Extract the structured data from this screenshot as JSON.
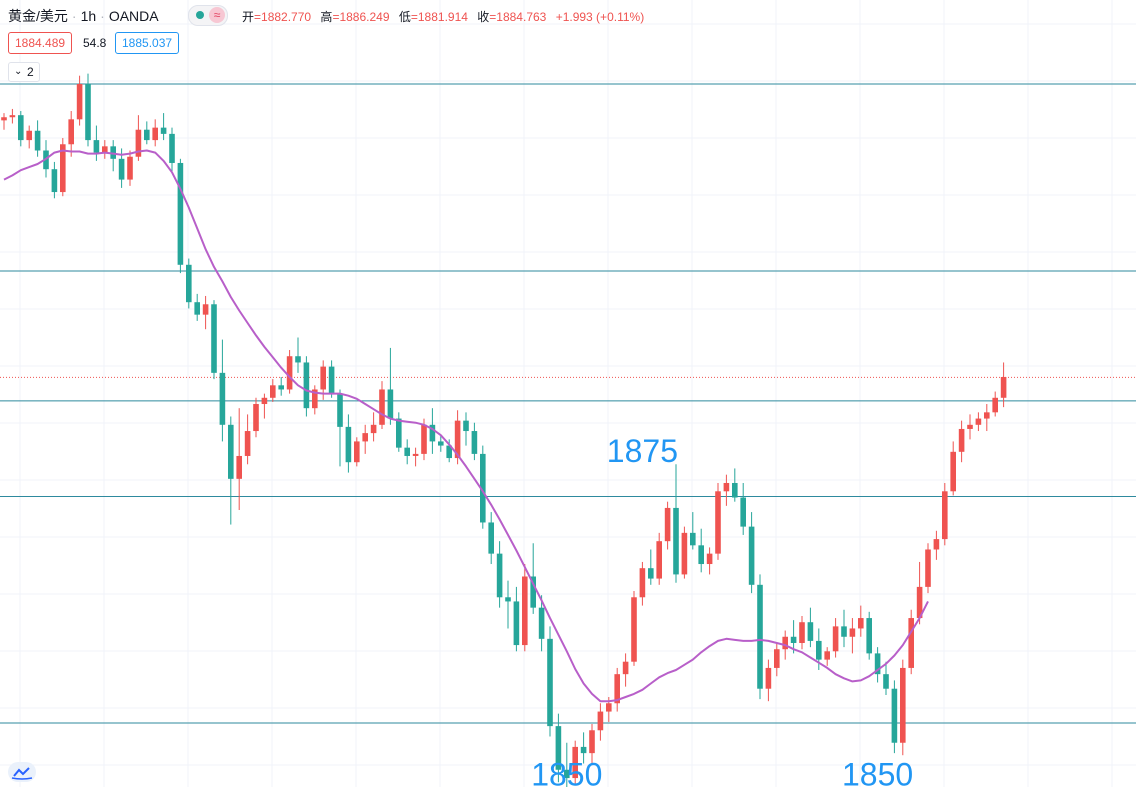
{
  "header": {
    "symbol": "黄金/美元",
    "timeframe": "1h",
    "broker": "OANDA",
    "open_label": "开",
    "open": "=1882.770",
    "high_label": "高",
    "high": "=1886.249",
    "low_label": "低",
    "low": "=1881.914",
    "close_label": "收",
    "close": "=1884.763",
    "change": "+1.993 (+0.11%)"
  },
  "quote": {
    "bid": "1884.489",
    "spread": "54.8",
    "ask": "1885.037"
  },
  "indicators_toggle": {
    "count": "2"
  },
  "colors": {
    "up": "#ef5350",
    "down": "#26a69a",
    "ma": "#b85fc9",
    "hline": "#2e8a9e",
    "annotation": "#2196f3"
  },
  "chart_data": {
    "type": "candlestick",
    "symbol": "XAU/USD",
    "interval": "1h",
    "current_price": 1884.763,
    "ylim": [
      1847.0,
      1920.0
    ],
    "horizontal_levels": [
      1913,
      1895,
      1882.5,
      1873.3,
      1851.5
    ],
    "annotations": [
      {
        "text": "1875",
        "index": 76
      },
      {
        "text": "1850",
        "index": 67
      },
      {
        "text": "1850",
        "index": 104
      }
    ],
    "candles": [
      [
        1909.5,
        1910.2,
        1908.6,
        1909.8
      ],
      [
        1909.8,
        1910.6,
        1909.2,
        1910.0
      ],
      [
        1910.0,
        1910.4,
        1907.0,
        1907.6
      ],
      [
        1907.6,
        1909.0,
        1906.8,
        1908.5
      ],
      [
        1908.5,
        1909.5,
        1906.0,
        1906.6
      ],
      [
        1906.6,
        1907.6,
        1904.0,
        1904.8
      ],
      [
        1904.8,
        1905.5,
        1902.0,
        1902.6
      ],
      [
        1902.6,
        1907.8,
        1902.2,
        1907.2
      ],
      [
        1907.2,
        1910.4,
        1906.0,
        1909.6
      ],
      [
        1909.6,
        1913.8,
        1909.0,
        1913.0
      ],
      [
        1913.0,
        1914.0,
        1907.0,
        1907.6
      ],
      [
        1907.6,
        1909.0,
        1905.6,
        1906.4
      ],
      [
        1906.4,
        1907.6,
        1905.8,
        1907.0
      ],
      [
        1907.0,
        1907.6,
        1904.6,
        1905.8
      ],
      [
        1905.8,
        1906.8,
        1903.0,
        1903.8
      ],
      [
        1903.8,
        1906.6,
        1903.2,
        1906.0
      ],
      [
        1906.0,
        1910.0,
        1905.6,
        1908.6
      ],
      [
        1908.6,
        1909.4,
        1907.2,
        1907.6
      ],
      [
        1907.6,
        1909.6,
        1907.0,
        1908.8
      ],
      [
        1908.8,
        1910.2,
        1907.6,
        1908.2
      ],
      [
        1908.2,
        1908.8,
        1904.6,
        1905.4
      ],
      [
        1905.4,
        1905.8,
        1894.8,
        1895.6
      ],
      [
        1895.6,
        1896.2,
        1891.4,
        1892.0
      ],
      [
        1892.0,
        1892.8,
        1890.2,
        1890.8
      ],
      [
        1890.8,
        1892.6,
        1889.4,
        1891.8
      ],
      [
        1891.8,
        1892.2,
        1884.6,
        1885.2
      ],
      [
        1885.2,
        1888.4,
        1878.6,
        1880.2
      ],
      [
        1880.2,
        1881.0,
        1870.6,
        1875.0
      ],
      [
        1875.0,
        1881.8,
        1872.0,
        1877.2
      ],
      [
        1877.2,
        1881.2,
        1876.4,
        1879.6
      ],
      [
        1879.6,
        1882.8,
        1879.0,
        1882.2
      ],
      [
        1882.2,
        1883.2,
        1880.8,
        1882.8
      ],
      [
        1882.8,
        1884.6,
        1882.4,
        1884.0
      ],
      [
        1884.0,
        1884.8,
        1883.0,
        1883.6
      ],
      [
        1883.6,
        1887.4,
        1883.2,
        1886.8
      ],
      [
        1886.8,
        1888.6,
        1885.2,
        1886.2
      ],
      [
        1886.2,
        1886.8,
        1881.0,
        1881.8
      ],
      [
        1881.8,
        1884.0,
        1881.2,
        1883.6
      ],
      [
        1883.6,
        1886.4,
        1882.6,
        1885.8
      ],
      [
        1885.8,
        1886.4,
        1882.8,
        1883.2
      ],
      [
        1883.2,
        1883.6,
        1876.2,
        1880.0
      ],
      [
        1880.0,
        1881.2,
        1875.6,
        1876.6
      ],
      [
        1876.6,
        1879.0,
        1876.2,
        1878.6
      ],
      [
        1878.6,
        1880.2,
        1877.4,
        1879.4
      ],
      [
        1879.4,
        1881.4,
        1878.6,
        1880.2
      ],
      [
        1880.2,
        1884.4,
        1879.8,
        1883.6
      ],
      [
        1883.6,
        1887.6,
        1880.2,
        1880.8
      ],
      [
        1880.8,
        1881.4,
        1877.6,
        1878.0
      ],
      [
        1878.0,
        1878.8,
        1876.4,
        1877.2
      ],
      [
        1877.2,
        1878.0,
        1876.2,
        1877.4
      ],
      [
        1877.4,
        1880.8,
        1876.8,
        1880.2
      ],
      [
        1880.2,
        1881.8,
        1877.4,
        1878.6
      ],
      [
        1878.6,
        1879.2,
        1877.6,
        1878.2
      ],
      [
        1878.2,
        1878.8,
        1876.6,
        1877.0
      ],
      [
        1877.0,
        1881.6,
        1876.4,
        1880.6
      ],
      [
        1880.6,
        1881.4,
        1878.2,
        1879.6
      ],
      [
        1879.6,
        1880.4,
        1876.8,
        1877.4
      ],
      [
        1877.4,
        1878.2,
        1870.2,
        1870.8
      ],
      [
        1870.8,
        1871.8,
        1866.8,
        1867.8
      ],
      [
        1867.8,
        1869.0,
        1862.6,
        1863.6
      ],
      [
        1863.6,
        1865.2,
        1860.6,
        1863.2
      ],
      [
        1863.2,
        1864.6,
        1858.4,
        1859.0
      ],
      [
        1859.0,
        1866.8,
        1858.4,
        1865.6
      ],
      [
        1865.6,
        1868.8,
        1862.0,
        1862.6
      ],
      [
        1862.6,
        1863.8,
        1858.4,
        1859.6
      ],
      [
        1859.6,
        1860.8,
        1850.2,
        1851.2
      ],
      [
        1851.2,
        1852.4,
        1845.8,
        1847.0
      ],
      [
        1847.0,
        1849.6,
        1845.0,
        1846.2
      ],
      [
        1846.2,
        1849.8,
        1845.6,
        1849.2
      ],
      [
        1849.2,
        1850.6,
        1847.6,
        1848.6
      ],
      [
        1848.6,
        1851.4,
        1847.6,
        1850.8
      ],
      [
        1850.8,
        1853.4,
        1849.8,
        1852.6
      ],
      [
        1852.6,
        1854.0,
        1851.6,
        1853.4
      ],
      [
        1853.4,
        1856.8,
        1852.6,
        1856.2
      ],
      [
        1856.2,
        1858.2,
        1855.0,
        1857.4
      ],
      [
        1857.4,
        1864.2,
        1857.0,
        1863.6
      ],
      [
        1863.6,
        1867.0,
        1862.8,
        1866.4
      ],
      [
        1866.4,
        1868.2,
        1864.8,
        1865.4
      ],
      [
        1865.4,
        1869.8,
        1864.8,
        1869.0
      ],
      [
        1869.0,
        1872.8,
        1868.2,
        1872.2
      ],
      [
        1872.2,
        1876.4,
        1865.0,
        1865.8
      ],
      [
        1865.8,
        1870.4,
        1865.4,
        1869.8
      ],
      [
        1869.8,
        1871.8,
        1868.2,
        1868.6
      ],
      [
        1868.6,
        1870.2,
        1866.0,
        1866.8
      ],
      [
        1866.8,
        1868.4,
        1865.8,
        1867.8
      ],
      [
        1867.8,
        1874.6,
        1867.2,
        1873.8
      ],
      [
        1873.8,
        1875.4,
        1872.4,
        1874.6
      ],
      [
        1874.6,
        1876.0,
        1872.8,
        1873.2
      ],
      [
        1873.2,
        1874.6,
        1869.6,
        1870.4
      ],
      [
        1870.4,
        1871.8,
        1864.0,
        1864.8
      ],
      [
        1864.8,
        1865.8,
        1853.8,
        1854.8
      ],
      [
        1854.8,
        1857.6,
        1853.6,
        1856.8
      ],
      [
        1856.8,
        1859.2,
        1856.0,
        1858.6
      ],
      [
        1858.6,
        1860.4,
        1857.6,
        1859.8
      ],
      [
        1859.8,
        1861.4,
        1858.2,
        1859.2
      ],
      [
        1859.2,
        1861.8,
        1858.6,
        1861.2
      ],
      [
        1861.2,
        1862.6,
        1858.8,
        1859.4
      ],
      [
        1859.4,
        1860.6,
        1856.6,
        1857.6
      ],
      [
        1857.6,
        1858.8,
        1857.0,
        1858.4
      ],
      [
        1858.4,
        1861.6,
        1857.8,
        1860.8
      ],
      [
        1860.8,
        1862.4,
        1858.8,
        1859.8
      ],
      [
        1859.8,
        1861.6,
        1858.2,
        1860.6
      ],
      [
        1860.6,
        1862.8,
        1859.8,
        1861.6
      ],
      [
        1861.6,
        1862.2,
        1857.6,
        1858.2
      ],
      [
        1858.2,
        1858.8,
        1855.4,
        1856.2
      ],
      [
        1856.2,
        1857.4,
        1854.2,
        1854.8
      ],
      [
        1854.8,
        1855.6,
        1848.6,
        1849.6
      ],
      [
        1849.6,
        1857.6,
        1848.4,
        1856.8
      ],
      [
        1856.8,
        1862.4,
        1856.2,
        1861.6
      ],
      [
        1861.6,
        1867.0,
        1861.0,
        1864.6
      ],
      [
        1864.6,
        1868.8,
        1864.0,
        1868.2
      ],
      [
        1868.2,
        1870.0,
        1867.2,
        1869.2
      ],
      [
        1869.2,
        1874.6,
        1868.6,
        1873.8
      ],
      [
        1873.8,
        1878.6,
        1873.4,
        1877.6
      ],
      [
        1877.6,
        1880.6,
        1876.6,
        1879.8
      ],
      [
        1879.8,
        1881.2,
        1878.8,
        1880.2
      ],
      [
        1880.2,
        1881.4,
        1879.6,
        1880.8
      ],
      [
        1880.8,
        1882.2,
        1879.6,
        1881.4
      ],
      [
        1881.4,
        1883.4,
        1881.0,
        1882.8
      ],
      [
        1882.8,
        1886.2,
        1881.9,
        1884.8
      ]
    ],
    "ma_series": {
      "name": "",
      "values": [
        1903.8,
        1904.2,
        1904.7,
        1905.0,
        1905.3,
        1905.8,
        1906.4,
        1906.6,
        1906.5,
        1906.5,
        1906.3,
        1906.3,
        1906.4,
        1906.3,
        1906.2,
        1906.3,
        1906.5,
        1906.6,
        1906.4,
        1905.6,
        1904.5,
        1902.9,
        1901.1,
        1899.1,
        1897.1,
        1895.4,
        1894.0,
        1892.5,
        1891.2,
        1890.0,
        1888.8,
        1887.7,
        1886.7,
        1885.7,
        1884.8,
        1884.0,
        1883.5,
        1883.3,
        1883.2,
        1883.2,
        1883.2,
        1883.0,
        1882.7,
        1882.2,
        1881.7,
        1881.2,
        1880.8,
        1880.6,
        1880.5,
        1880.4,
        1880.2,
        1879.8,
        1879.2,
        1878.3,
        1877.3,
        1876.2,
        1875.0,
        1873.8,
        1872.5,
        1871.1,
        1869.6,
        1868.1,
        1866.5,
        1864.9,
        1863.3,
        1861.6,
        1860.0,
        1858.4,
        1856.7,
        1855.3,
        1854.3,
        1853.6,
        1853.6,
        1853.7,
        1854.0,
        1854.3,
        1854.7,
        1855.3,
        1855.9,
        1856.3,
        1856.6,
        1857.1,
        1857.6,
        1858.3,
        1858.9,
        1859.4,
        1859.6,
        1859.5,
        1859.4,
        1859.4,
        1859.5,
        1859.4,
        1859.2,
        1859.0,
        1858.6,
        1858.3,
        1857.8,
        1857.3,
        1856.8,
        1856.2,
        1855.8,
        1855.5,
        1855.6,
        1856.0,
        1856.6,
        1857.2,
        1858.0,
        1859.0,
        1860.3,
        1861.6,
        1863.2
      ]
    }
  }
}
